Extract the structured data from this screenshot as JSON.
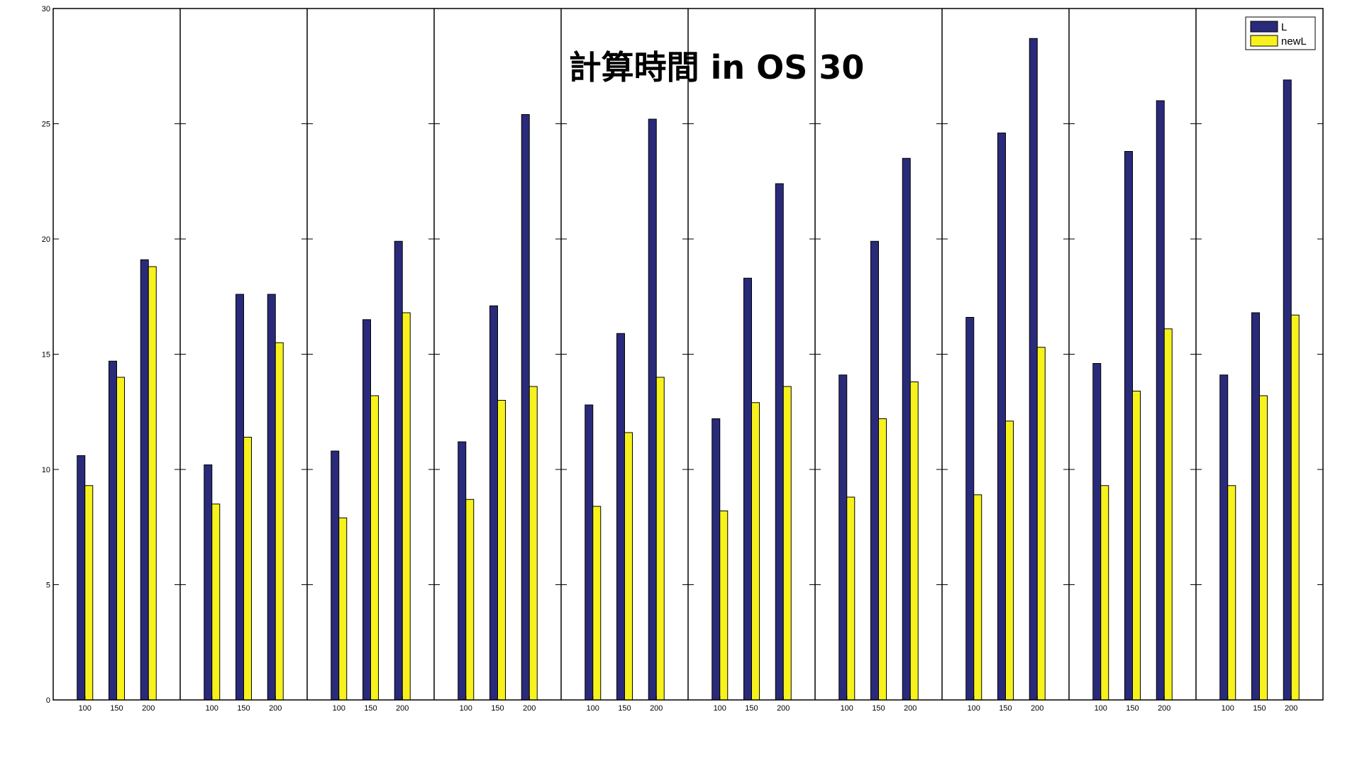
{
  "chart_data": {
    "type": "bar",
    "title": "計算時間 in OS 30",
    "xlabel": "",
    "ylabel": "",
    "ylim": [
      0,
      30
    ],
    "yticks": [
      0,
      5,
      10,
      15,
      20,
      25,
      30
    ],
    "grid": false,
    "legend_position": "top-right",
    "categories": [
      "100",
      "150",
      "200"
    ],
    "groups": 10,
    "series": [
      {
        "name": "L",
        "color": "#2a2a7a",
        "values": [
          [
            10.6,
            14.7,
            19.1
          ],
          [
            10.2,
            17.6,
            17.6
          ],
          [
            10.8,
            16.5,
            19.9
          ],
          [
            11.2,
            17.1,
            25.4
          ],
          [
            12.8,
            15.9,
            25.2
          ],
          [
            12.2,
            18.3,
            22.4
          ],
          [
            14.1,
            19.9,
            23.5
          ],
          [
            16.6,
            24.6,
            28.7
          ],
          [
            14.6,
            23.8,
            26.0
          ],
          [
            14.1,
            16.8,
            26.9
          ]
        ]
      },
      {
        "name": "newL",
        "color": "#f7f21c",
        "values": [
          [
            9.3,
            14.0,
            18.8
          ],
          [
            8.5,
            11.4,
            15.5
          ],
          [
            7.9,
            13.2,
            16.8
          ],
          [
            8.7,
            13.0,
            13.6
          ],
          [
            8.4,
            11.6,
            14.0
          ],
          [
            8.2,
            12.9,
            13.6
          ],
          [
            8.8,
            12.2,
            13.8
          ],
          [
            8.9,
            12.1,
            15.3
          ],
          [
            9.3,
            13.4,
            16.1
          ],
          [
            9.3,
            13.2,
            16.7
          ]
        ]
      }
    ]
  }
}
